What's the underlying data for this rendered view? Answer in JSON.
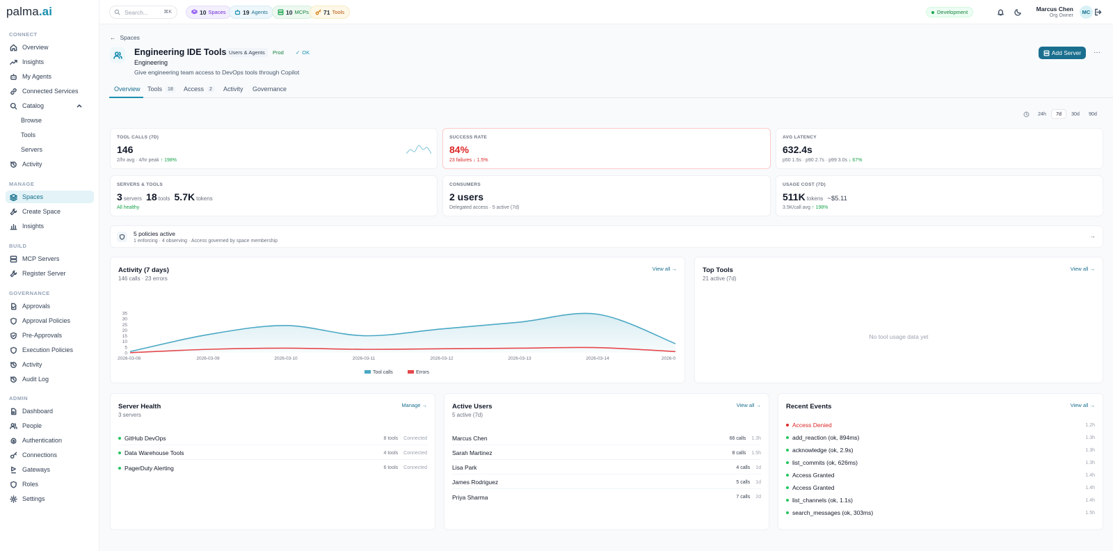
{
  "app": {
    "logo_main": "palma",
    "logo_accent": ".ai"
  },
  "sidebar": {
    "sections": {
      "connect": "CONNECT",
      "manage": "MANAGE",
      "build": "BUILD",
      "governance": "GOVERNANCE",
      "admin": "ADMIN"
    },
    "items": {
      "overview": "Overview",
      "insights": "Insights",
      "my_agents": "My Agents",
      "connected_services": "Connected Services",
      "catalog": "Catalog",
      "browse": "Browse",
      "tools": "Tools",
      "servers": "Servers",
      "activity": "Activity",
      "spaces": "Spaces",
      "create_space": "Create Space",
      "manage_insights": "Insights",
      "mcp_servers": "MCP Servers",
      "register_server": "Register Server",
      "approvals": "Approvals",
      "approval_policies": "Approval Policies",
      "pre_approvals": "Pre-Approvals",
      "execution_policies": "Execution Policies",
      "gov_activity": "Activity",
      "audit_log": "Audit Log",
      "dashboard": "Dashboard",
      "people": "People",
      "authentication": "Authentication",
      "connections": "Connections",
      "gateways": "Gateways",
      "roles": "Roles",
      "settings": "Settings"
    }
  },
  "topbar": {
    "search_placeholder": "Search...",
    "search_shortcut": "⌘K",
    "pills": {
      "spaces": {
        "count": "10",
        "label": "Spaces"
      },
      "agents": {
        "count": "19",
        "label": "Agents"
      },
      "mcps": {
        "count": "10",
        "label": "MCPs"
      },
      "tools": {
        "count": "71",
        "label": "Tools"
      }
    },
    "environment": "Development",
    "user": {
      "name": "Marcus Chen",
      "role": "Org Owner",
      "initials": "MC"
    }
  },
  "header": {
    "breadcrumb": "Spaces",
    "title": "Engineering IDE Tools",
    "tags": {
      "audience": "Users & Agents",
      "env": "Prod",
      "status": "OK"
    },
    "subtitle": "Engineering",
    "description": "Give engineering team access to DevOps tools through Copilot",
    "add_server": "Add Server",
    "more": "···"
  },
  "tabs": {
    "overview": "Overview",
    "tools": {
      "label": "Tools",
      "count": "18"
    },
    "access": {
      "label": "Access",
      "count": "2"
    },
    "activity": "Activity",
    "governance": "Governance"
  },
  "time_ranges": {
    "d24h": "24h",
    "d7": "7d",
    "d30": "30d",
    "d90": "90d",
    "selected": "7d"
  },
  "stats": {
    "tool_calls": {
      "label": "TOOL CALLS (7D)",
      "value": "146",
      "sub": "2/hr avg · 4/hr peak",
      "trend": "↑ 198%",
      "sparkline": [
        2,
        3,
        2.5,
        4,
        3,
        3.5,
        2
      ]
    },
    "success_rate": {
      "label": "SUCCESS RATE",
      "value": "84%",
      "sub": "23 failures",
      "trend": "↓ 1.5%"
    },
    "avg_latency": {
      "label": "AVG LATENCY",
      "value": "632.4s",
      "sub": "p50 1.5s · p90 2.7s · p99 3.0s",
      "trend": "↓ 67%"
    },
    "servers_tools": {
      "label": "SERVERS & TOOLS",
      "servers": "3",
      "servers_unit": "servers",
      "tools": "18",
      "tools_unit": "tools",
      "tokens": "5.7K",
      "tokens_unit": "tokens",
      "sub": "All healthy"
    },
    "consumers": {
      "label": "CONSUMERS",
      "value": "2 users",
      "sub": "Delegated access · 5 active (7d)"
    },
    "usage_cost": {
      "label": "USAGE COST (7D)",
      "value": "511K",
      "unit": "tokens",
      "cost": "~$5.11",
      "sub": "3.5K/call avg",
      "trend": "↑ 198%"
    }
  },
  "policies": {
    "title": "5 policies active",
    "sub": "1 enforcing · 4 observing · Access governed by space membership"
  },
  "activity_panel": {
    "title": "Activity (7 days)",
    "sub": "146 calls · 23 errors",
    "view_all": "View all →"
  },
  "chart_data": {
    "type": "area",
    "x": [
      "2026-03-08",
      "2026-03-09",
      "2026-03-10",
      "2026-03-11",
      "2026-03-12",
      "2026-03-13",
      "2026-03-14",
      "2026-03-15"
    ],
    "x_tick_labels": [
      "2026-03-08",
      "2026-03-09",
      "2026-03-10",
      "2026-03-11",
      "2026-03-12",
      "2026-03-13",
      "2026-03-14",
      "2026-0"
    ],
    "series": [
      {
        "name": "Tool calls",
        "values": [
          1,
          16,
          24,
          15,
          21,
          27,
          34,
          8
        ],
        "color": "#4aa8c4"
      },
      {
        "name": "Errors",
        "values": [
          0,
          3,
          4,
          3,
          3.5,
          4,
          4.5,
          1
        ],
        "color": "#e5484d"
      }
    ],
    "yticks": [
      0,
      5,
      10,
      15,
      20,
      25,
      30,
      35
    ],
    "ylim": [
      0,
      35
    ],
    "legend": "bottom",
    "grid": false
  },
  "top_tools": {
    "title": "Top Tools",
    "sub": "21 active (7d)",
    "view_all": "View all →",
    "empty": "No tool usage data yet"
  },
  "server_health": {
    "title": "Server Health",
    "sub": "3 servers",
    "manage": "Manage →",
    "rows": [
      {
        "name": "GitHub DevOps",
        "tools": "8 tools",
        "status": "Connected"
      },
      {
        "name": "Data Warehouse Tools",
        "tools": "4 tools",
        "status": "Connected"
      },
      {
        "name": "PagerDuty Alerting",
        "tools": "6 tools",
        "status": "Connected"
      }
    ]
  },
  "active_users": {
    "title": "Active Users",
    "sub": "5 active (7d)",
    "view_all": "View all →",
    "rows": [
      {
        "name": "Marcus Chen",
        "calls": "66 calls",
        "ago": "1.3h"
      },
      {
        "name": "Sarah Martinez",
        "calls": "8 calls",
        "ago": "1.5h"
      },
      {
        "name": "Lisa Park",
        "calls": "4 calls",
        "ago": "1d"
      },
      {
        "name": "James Rodriguez",
        "calls": "5 calls",
        "ago": "1d"
      },
      {
        "name": "Priya Sharma",
        "calls": "7 calls",
        "ago": "2d"
      }
    ]
  },
  "recent_events": {
    "title": "Recent Events",
    "view_all": "View all →",
    "rows": [
      {
        "text": "Access Denied",
        "ago": "1.2h"
      },
      {
        "text": "add_reaction (ok, 894ms)",
        "ago": "1.3h"
      },
      {
        "text": "acknowledge (ok, 2.9s)",
        "ago": "1.3h"
      },
      {
        "text": "list_commits (ok, 626ms)",
        "ago": "1.3h"
      },
      {
        "text": "Access Granted",
        "ago": "1.4h"
      },
      {
        "text": "Access Granted",
        "ago": "1.4h"
      },
      {
        "text": "list_channels (ok, 1.1s)",
        "ago": "1.4h"
      },
      {
        "text": "search_messages (ok, 303ms)",
        "ago": "1.5h"
      }
    ]
  }
}
